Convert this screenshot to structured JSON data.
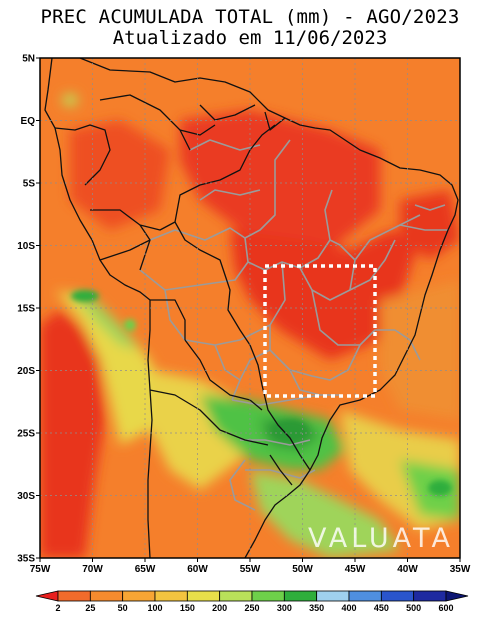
{
  "header": {
    "title": "PREC ACUMULADA TOTAL (mm) - AGO/2023",
    "subtitle": "Atualizado em 11/06/2023"
  },
  "axes": {
    "lat_labels": [
      "5N",
      "EQ",
      "5S",
      "10S",
      "15S",
      "20S",
      "25S",
      "30S",
      "35S"
    ],
    "lon_labels": [
      "75W",
      "70W",
      "65W",
      "60W",
      "55W",
      "50W",
      "45W",
      "40W",
      "35W"
    ]
  },
  "colorbar": {
    "labels": [
      "2",
      "25",
      "50",
      "100",
      "150",
      "200",
      "250",
      "300",
      "350",
      "400",
      "450",
      "500",
      "600"
    ],
    "colors": [
      "#e8201e",
      "#f26b2b",
      "#f58b2e",
      "#f7a534",
      "#f3c43f",
      "#e8df4a",
      "#b9e15a",
      "#6ed04a",
      "#2fae3c",
      "#9fd0ee",
      "#4f8fe0",
      "#2a55cc",
      "#1e2aa0",
      "#0d1673"
    ]
  },
  "watermark": {
    "text": "VALUATA"
  },
  "highlight_box": {
    "type": "dotted-rectangle",
    "color": "#ffffff"
  }
}
